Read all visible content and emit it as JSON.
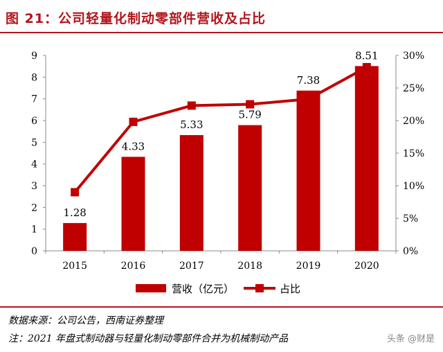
{
  "header": {
    "title": "图 21：公司轻量化制动零部件营收及占比"
  },
  "footer": {
    "source": "数据来源：公司公告，西南证券整理",
    "note": "注：2021 年盘式制动器与轻量化制动零部件合并为机械制动产品",
    "watermark": "头条 @财是"
  },
  "colors": {
    "accent": "#c00000",
    "title": "#b3141c"
  },
  "chart_data": {
    "type": "bar",
    "categories": [
      "2015",
      "2016",
      "2017",
      "2018",
      "2019",
      "2020"
    ],
    "series": [
      {
        "name": "营收（亿元）",
        "kind": "bar",
        "axis": "left",
        "values": [
          1.28,
          4.33,
          5.33,
          5.79,
          7.38,
          8.51
        ],
        "labels": [
          "1.28",
          "4.33",
          "5.33",
          "5.79",
          "7.38",
          "8.51"
        ]
      },
      {
        "name": "占比",
        "kind": "line",
        "axis": "right",
        "values": [
          9.0,
          19.8,
          22.3,
          22.5,
          23.3,
          28.2
        ]
      }
    ],
    "y_left": {
      "min": 0,
      "max": 9,
      "ticks": [
        "0",
        "1",
        "2",
        "3",
        "4",
        "5",
        "6",
        "7",
        "8",
        "9"
      ]
    },
    "y_right": {
      "min": 0,
      "max": 30,
      "ticks": [
        "0%",
        "5%",
        "10%",
        "15%",
        "20%",
        "25%",
        "30%"
      ]
    },
    "legend": {
      "position": "bottom"
    },
    "grid": false
  }
}
